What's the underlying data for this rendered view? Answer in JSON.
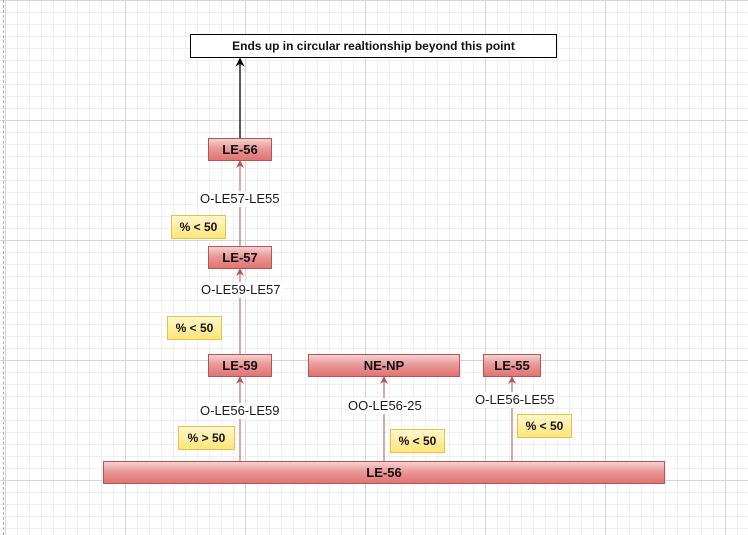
{
  "title": "Ends up in circular realtionship beyond this point",
  "nodes": {
    "le56_top": "LE-56",
    "le57": "LE-57",
    "le59": "LE-59",
    "nenp": "NE-NP",
    "le55": "LE-55",
    "le56_base": "LE-56"
  },
  "edges": {
    "le57_to_le56": "O-LE57-LE55",
    "le59_to_le57": "O-LE59-LE57",
    "base_to_le59": "O-LE56-LE59",
    "base_to_nenp": "OO-LE56-25",
    "base_to_le55": "O-LE56-LE55"
  },
  "badges": {
    "le57_to_le56": "% < 50",
    "le59_to_le57": "% < 50",
    "base_to_le59": "% > 50",
    "base_to_nenp": "% < 50",
    "base_to_le55": "% < 50"
  },
  "colors": {
    "node_fill": "#ea9898",
    "node_border": "#b85450",
    "badge_fill": "#ffe57a",
    "badge_border": "#e3c24a",
    "arrow_red": "#b85450",
    "arrow_black": "#000000"
  }
}
